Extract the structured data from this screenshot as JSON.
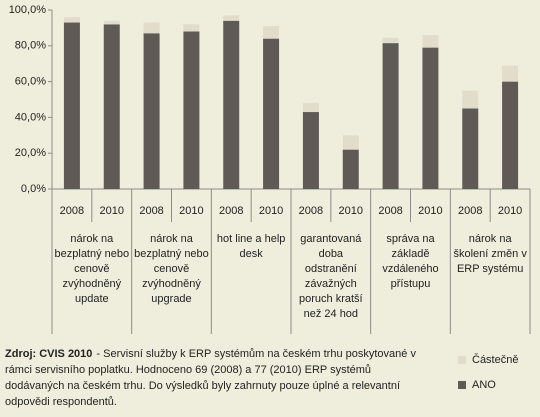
{
  "chart_data": {
    "type": "stacked_bar",
    "categories": [
      "2008",
      "2010",
      "2008",
      "2010",
      "2008",
      "2010",
      "2008",
      "2010",
      "2008",
      "2010",
      "2008",
      "2010"
    ],
    "groups": [
      "nárok na bezplatný nebo cenově zvýhodněný update",
      "nárok na bezplatný nebo cenově zvýhodněný upgrade",
      "hot line a help desk",
      "garantovaná doba odstranění závažných poruch kratší než 24 hod",
      "správa na základě vzdáleného přístupu",
      "nárok na školení změn v ERP systému"
    ],
    "series": [
      {
        "name": "ANO",
        "color": "#5f5a56",
        "values": [
          93,
          92,
          87,
          88,
          94,
          84,
          43,
          22,
          81.5,
          79,
          45,
          60
        ]
      },
      {
        "name": "Částečně",
        "color": "#e2dccb",
        "values": [
          3,
          2,
          6,
          4,
          3,
          7,
          5,
          8,
          3,
          7,
          10,
          9
        ]
      }
    ],
    "ylim": [
      0,
      100
    ],
    "yticks": [
      {
        "value": 0,
        "label": "0,0%"
      },
      {
        "value": 20,
        "label": "20,0%"
      },
      {
        "value": 40,
        "label": "40,0%"
      },
      {
        "value": 60,
        "label": "60,0%"
      },
      {
        "value": 80,
        "label": "80,0%"
      },
      {
        "value": 100,
        "label": "100,0%"
      }
    ],
    "source_label": "Zdroj: CVIS 2010",
    "source_text": "- Servisní služby k ERP systémům na českém trhu poskytované v rámci servisního poplatku. Hodnoceno 69 (2008) a 77 (2010) ERP systémů dodávaných na českém trhu. Do výsledků byly zahrnuty pouze úplné a relevantní odpovědi respondentů."
  }
}
